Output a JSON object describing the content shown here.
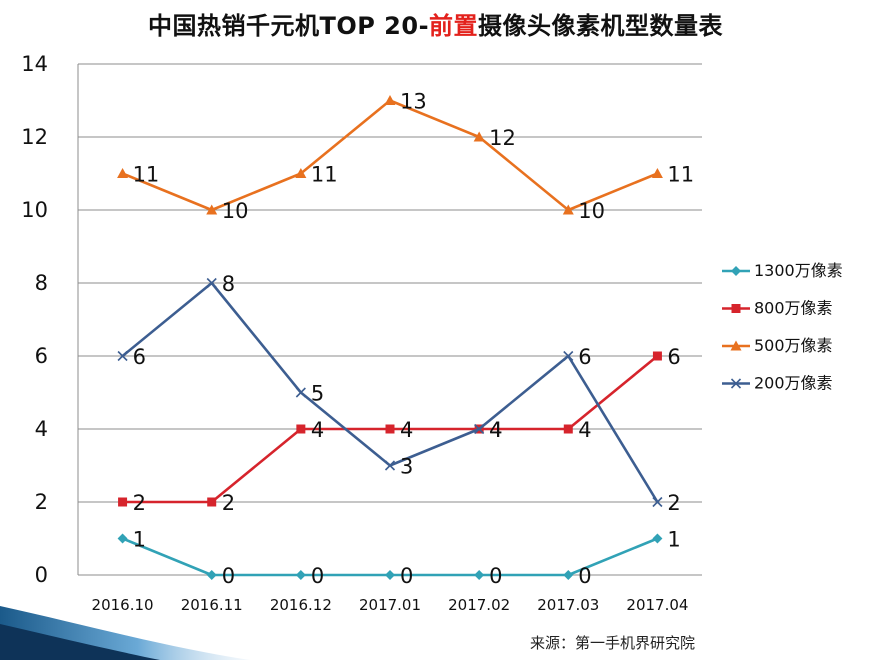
{
  "title": {
    "part1": "中国热销千元机TOP 20-",
    "highlight": "前置",
    "part2": "摄像头像素机型数量表",
    "highlight_color": "#e3211c"
  },
  "source": "来源：第一手机界研究院",
  "chart_data": {
    "type": "line",
    "title": "中国热销千元机TOP 20-前置摄像头像素机型数量表",
    "xlabel": "",
    "ylabel": "",
    "categories": [
      "2016.10",
      "2016.11",
      "2016.12",
      "2017.01",
      "2017.02",
      "2017.03",
      "2017.04"
    ],
    "y_ticks": [
      "0",
      "2",
      "4",
      "6",
      "8",
      "10",
      "12",
      "14"
    ],
    "ylim": [
      0,
      14
    ],
    "grid": true,
    "legend_position": "right",
    "series": [
      {
        "name": "1300万像素",
        "values": [
          1,
          0,
          0,
          0,
          0,
          0,
          1
        ],
        "color": "#31a2b6",
        "marker": "diamond",
        "labels": [
          "1",
          "0",
          "0",
          "0",
          "0",
          "0",
          "1"
        ]
      },
      {
        "name": "800万像素",
        "values": [
          2,
          2,
          4,
          4,
          4,
          4,
          6
        ],
        "color": "#d6242c",
        "marker": "square",
        "labels": [
          "2",
          "2",
          "4",
          "4",
          "4",
          "4",
          "6"
        ]
      },
      {
        "name": "500万像素",
        "values": [
          11,
          10,
          11,
          13,
          12,
          10,
          11
        ],
        "color": "#e8711f",
        "marker": "triangle",
        "labels": [
          "11",
          "10",
          "11",
          "13",
          "12",
          "10",
          "11"
        ]
      },
      {
        "name": "200万像素",
        "values": [
          6,
          8,
          5,
          3,
          4,
          6,
          2
        ],
        "color": "#3d5e91",
        "marker": "x",
        "labels": [
          "6",
          "8",
          "5",
          "3",
          "4",
          "6",
          "2"
        ]
      }
    ]
  }
}
